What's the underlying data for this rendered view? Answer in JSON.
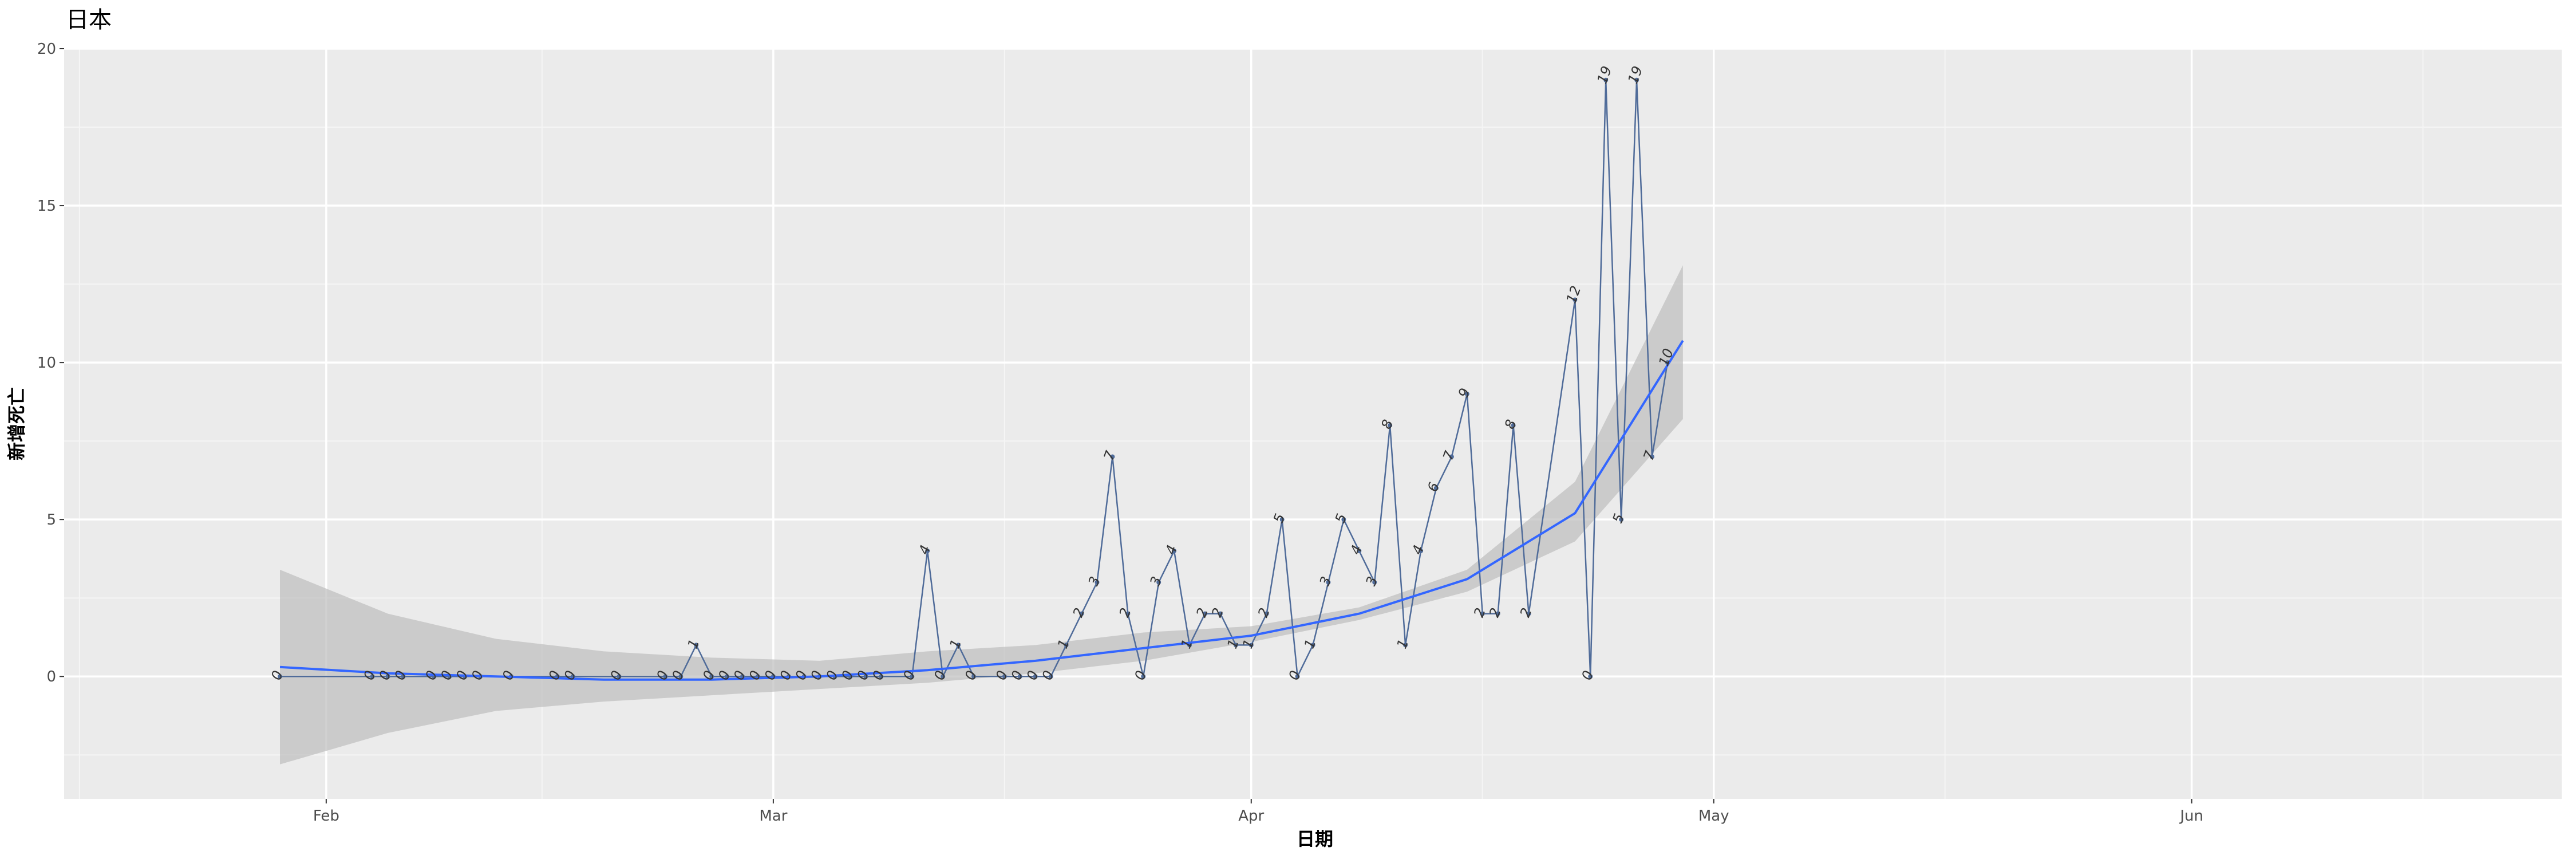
{
  "chart_data": {
    "type": "line",
    "title": "日本",
    "xlabel": "日期",
    "ylabel": "新增死亡",
    "x_ticks": [
      "Feb",
      "Mar",
      "Apr",
      "May",
      "Jun"
    ],
    "x_range": [
      "2020-01-15",
      "2020-06-25"
    ],
    "y_ticks": [
      "0",
      "5",
      "10",
      "15",
      "20"
    ],
    "ylim": [
      -3.9,
      20
    ],
    "grid": true,
    "background": "#ebebeb",
    "colors": {
      "points": "#4f6b99",
      "trend": "#3366ff",
      "ribbon": "#bdbdbd"
    },
    "series": [
      {
        "x": [
          "2020-01-29",
          "2020-02-04",
          "2020-02-05",
          "2020-02-06",
          "2020-02-08",
          "2020-02-09",
          "2020-02-10",
          "2020-02-11",
          "2020-02-13",
          "2020-02-16",
          "2020-02-17",
          "2020-02-20",
          "2020-02-23",
          "2020-02-24",
          "2020-02-25",
          "2020-02-26",
          "2020-02-27",
          "2020-02-28",
          "2020-02-29",
          "2020-03-01",
          "2020-03-02",
          "2020-03-03",
          "2020-03-04",
          "2020-03-05",
          "2020-03-06",
          "2020-03-07",
          "2020-03-08",
          "2020-03-10",
          "2020-03-11",
          "2020-03-12",
          "2020-03-13",
          "2020-03-14",
          "2020-03-16",
          "2020-03-17",
          "2020-03-18",
          "2020-03-19",
          "2020-03-20",
          "2020-03-21",
          "2020-03-22",
          "2020-03-23",
          "2020-03-24",
          "2020-03-25",
          "2020-03-26",
          "2020-03-27",
          "2020-03-28",
          "2020-03-29",
          "2020-03-30",
          "2020-03-31",
          "2020-04-01",
          "2020-04-02",
          "2020-04-03",
          "2020-04-04",
          "2020-04-05",
          "2020-04-06",
          "2020-04-07",
          "2020-04-08",
          "2020-04-09",
          "2020-04-10",
          "2020-04-11",
          "2020-04-12",
          "2020-04-13",
          "2020-04-14",
          "2020-04-15",
          "2020-04-16",
          "2020-04-17",
          "2020-04-18",
          "2020-04-19"
        ],
        "values": [
          0,
          0,
          0,
          0,
          0,
          0,
          0,
          0,
          0,
          0,
          0,
          0,
          0,
          0,
          1,
          0,
          0,
          0,
          0,
          0,
          0,
          0,
          0,
          0,
          0,
          0,
          0,
          0,
          4,
          0,
          1,
          0,
          0,
          0,
          0,
          0,
          1,
          2,
          3,
          7,
          2,
          0,
          3,
          4,
          1,
          2,
          2,
          1,
          1,
          2,
          5,
          0,
          1,
          3,
          5,
          4,
          3,
          8,
          1,
          4,
          6,
          7,
          9,
          2,
          2,
          8,
          2
        ]
      }
    ],
    "trend": {
      "label": "loess",
      "x": [
        "2020-01-29",
        "2020-02-05",
        "2020-02-12",
        "2020-02-19",
        "2020-02-26",
        "2020-03-04",
        "2020-03-11",
        "2020-03-18",
        "2020-03-25",
        "2020-04-01",
        "2020-04-08",
        "2020-04-15",
        "2020-04-22",
        "2020-04-29"
      ],
      "y": [
        0.3,
        0.1,
        0.0,
        -0.1,
        -0.1,
        0.0,
        0.2,
        0.5,
        0.9,
        1.3,
        2.0,
        3.1,
        5.2,
        10.7
      ],
      "lower": [
        -2.8,
        -1.8,
        -1.1,
        -0.8,
        -0.6,
        -0.4,
        -0.2,
        0.1,
        0.5,
        1.1,
        1.8,
        2.7,
        4.3,
        8.2
      ],
      "upper": [
        3.4,
        2.0,
        1.2,
        0.8,
        0.6,
        0.5,
        0.8,
        1.0,
        1.4,
        1.6,
        2.2,
        3.4,
        6.2,
        13.1
      ]
    },
    "extra_labels": [
      {
        "date": "2020-04-23",
        "value": 0
      },
      {
        "date": "2020-04-24",
        "value": 19
      },
      {
        "date": "2020-04-25",
        "value": 5
      },
      {
        "date": "2020-04-26",
        "value": 19
      },
      {
        "date": "2020-04-27",
        "value": 7
      },
      {
        "date": "2020-04-28",
        "value": 10
      },
      {
        "date": "2020-04-22",
        "value": 12
      }
    ]
  }
}
